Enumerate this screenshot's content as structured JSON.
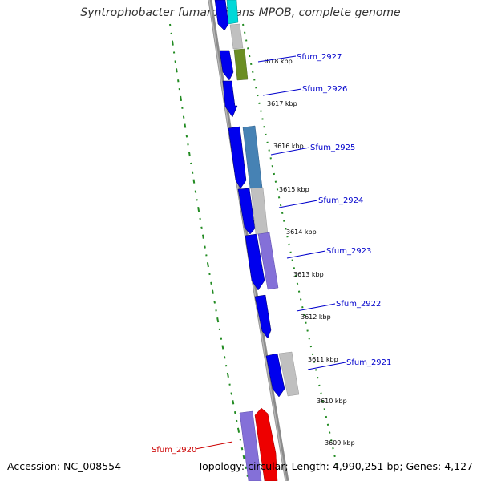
{
  "title": "Syntrophobacter fumaroxidans MPOB, complete genome",
  "footer": {
    "accession": "Accession: NC_008554",
    "summary": "Topology: circular; Length: 4,990,251 bp; Genes: 4,127"
  },
  "colors": {
    "forward_strand": "#0000ee",
    "gene_label": "#0000cc",
    "highlight_label": "#cc0000",
    "gc_dots": "#228b22",
    "backbone": "#8c8c8c"
  },
  "kbp_ticks": [
    "3618 kbp",
    "3617 kbp",
    "3616 kbp",
    "3615 kbp",
    "3614 kbp",
    "3613 kbp",
    "3612 kbp",
    "3611 kbp",
    "3610 kbp",
    "3609 kbp"
  ],
  "gene_labels": [
    "Sfum_2927",
    "Sfum_2926",
    "Sfum_2925",
    "Sfum_2924",
    "Sfum_2923",
    "Sfum_2922",
    "Sfum_2921",
    "Sfum_2920"
  ],
  "cog_block_colors": [
    "#00d8d8",
    "#c0c0c0",
    "#6b8e23",
    "#4682b4",
    "#c0c0c0",
    "#8470d8",
    "#c0c0c0",
    "#8470d8",
    "#ee0000"
  ]
}
